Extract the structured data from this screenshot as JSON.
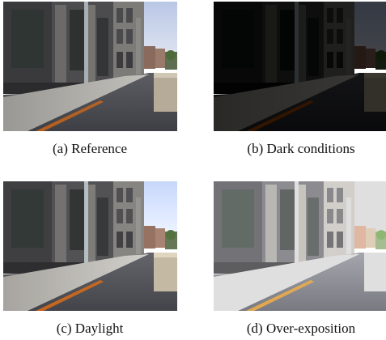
{
  "figure": {
    "panels": [
      {
        "id": "a",
        "caption": "(a) Reference"
      },
      {
        "id": "b",
        "caption": "(b) Dark conditions"
      },
      {
        "id": "c",
        "caption": "(c) Daylight"
      },
      {
        "id": "d",
        "caption": "(d) Over-exposition"
      }
    ]
  }
}
